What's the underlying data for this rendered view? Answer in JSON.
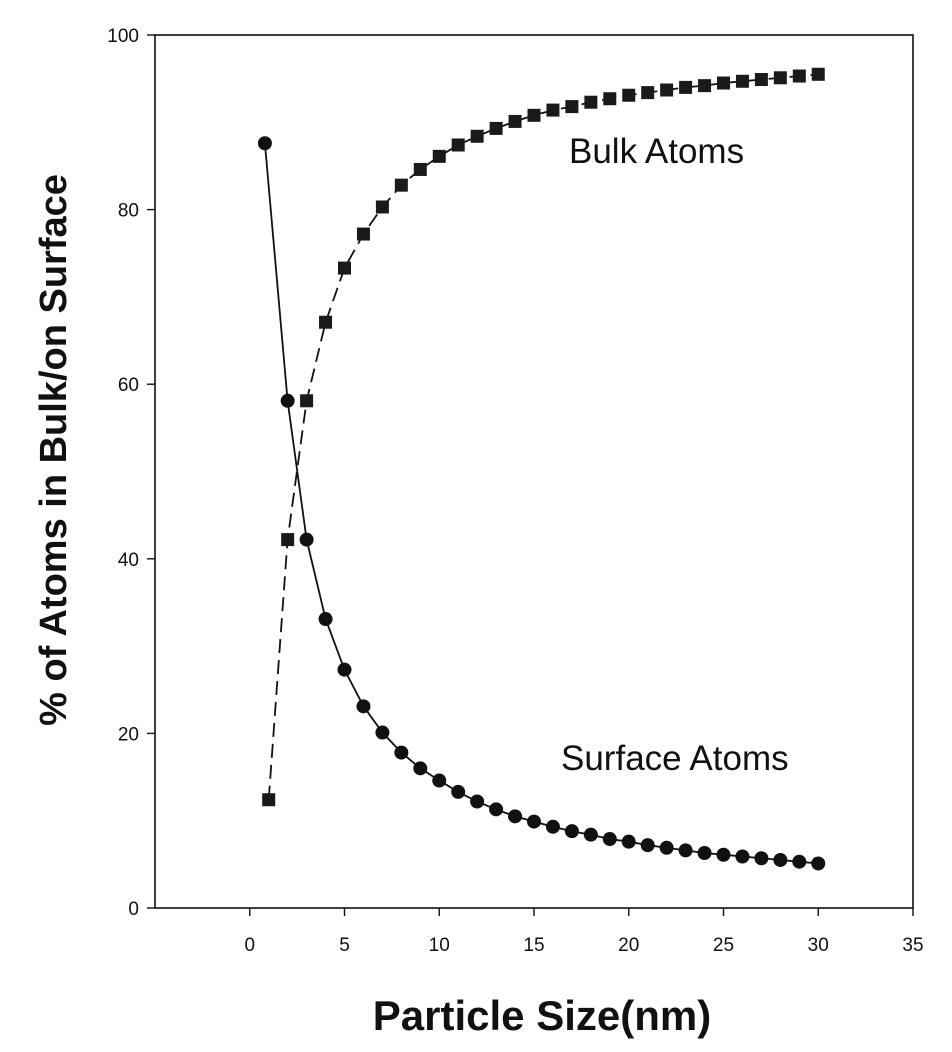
{
  "chart_data": {
    "type": "scatter",
    "title": "",
    "xlabel": "Particle Size(nm)",
    "ylabel": "% of Atoms in Bulk/on Surface",
    "xlim": [
      -5,
      35
    ],
    "ylim": [
      0,
      100
    ],
    "x_ticks": [
      0,
      5,
      10,
      15,
      20,
      25,
      30,
      35
    ],
    "y_ticks": [
      0,
      20,
      40,
      60,
      80,
      100
    ],
    "grid": false,
    "legend": "none",
    "annotations": [
      {
        "text": "Bulk Atoms",
        "x": 17.2,
        "y": 86.3
      },
      {
        "text": "Surface Atoms",
        "x": 16.8,
        "y": 16.3
      }
    ],
    "series": [
      {
        "label": "Bulk Atoms",
        "marker": "square",
        "line": "dashed",
        "x": [
          1,
          2,
          3,
          4,
          5,
          6,
          7,
          8,
          9,
          10,
          11,
          12,
          13,
          14,
          15,
          16,
          17,
          18,
          19,
          20,
          21,
          22,
          23,
          24,
          25,
          26,
          27,
          28,
          29,
          30
        ],
        "values": [
          12.4,
          42.2,
          58.1,
          67.1,
          73.3,
          77.2,
          80.3,
          82.8,
          84.6,
          86.1,
          87.4,
          88.4,
          89.3,
          90.1,
          90.8,
          91.4,
          91.8,
          92.3,
          92.7,
          93.1,
          93.4,
          93.7,
          94.0,
          94.2,
          94.5,
          94.7,
          94.9,
          95.1,
          95.3,
          95.5
        ]
      },
      {
        "label": "Surface Atoms",
        "marker": "circle",
        "line": "solid",
        "x": [
          0.8,
          2,
          3,
          4,
          5,
          6,
          7,
          8,
          9,
          10,
          11,
          12,
          13,
          14,
          15,
          16,
          17,
          18,
          19,
          20,
          21,
          22,
          23,
          24,
          25,
          26,
          27,
          28,
          29,
          30
        ],
        "values": [
          87.6,
          58.1,
          42.2,
          33.1,
          27.3,
          23.1,
          20.1,
          17.8,
          16.0,
          14.6,
          13.3,
          12.2,
          11.3,
          10.5,
          9.9,
          9.3,
          8.8,
          8.4,
          7.9,
          7.6,
          7.2,
          6.9,
          6.6,
          6.3,
          6.1,
          5.9,
          5.7,
          5.5,
          5.3,
          5.1
        ]
      }
    ]
  },
  "colors": {
    "ink": "#111111",
    "background": "#ffffff"
  }
}
